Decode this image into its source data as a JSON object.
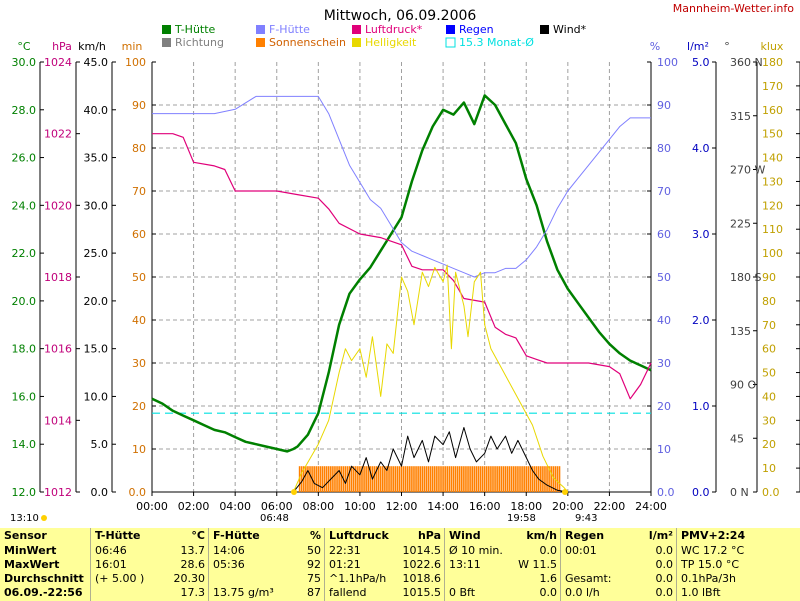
{
  "title": "Mittwoch, 06.09.2006",
  "site": "Mannheim-Wetter.info",
  "axis_units": {
    "temp": "°C",
    "pressure": "hPa",
    "wind": "km/h",
    "minutes": "min",
    "percent": "%",
    "rain": "l/m²",
    "direction": "°",
    "light": "klux"
  },
  "legend": [
    {
      "label": "T-Hütte",
      "color": "#008000",
      "marker": "square"
    },
    {
      "label": "Richtung",
      "color": "#808080",
      "marker": "square"
    },
    {
      "label": "F-Hütte",
      "color": "#8080ff",
      "marker": "square"
    },
    {
      "label": "Sonnenschein",
      "color": "#ff8000",
      "marker": "square"
    },
    {
      "label": "Luftdruck*",
      "color": "#e0007a",
      "marker": "square"
    },
    {
      "label": "Helligkeit",
      "color": "#e8d800",
      "marker": "square"
    },
    {
      "label": "Regen",
      "color": "#0000ff",
      "marker": "square"
    },
    {
      "label": "15.3 Monat-Ø",
      "color": "#00e0e0",
      "marker": "outline"
    },
    {
      "label": "Wind*",
      "color": "#000000",
      "marker": "square"
    }
  ],
  "markers": {
    "left_time": "13:10",
    "sunrise": "06:48",
    "sunset": "19:58",
    "right_time": "9:43"
  },
  "chart_data": {
    "type": "line",
    "title": "Mittwoch, 06.09.2006",
    "x": {
      "range": [
        0,
        24
      ],
      "ticks": [
        "00:00",
        "02:00",
        "04:00",
        "06:00",
        "08:00",
        "10:00",
        "12:00",
        "14:00",
        "16:00",
        "18:00",
        "20:00",
        "22:00",
        "24:00"
      ]
    },
    "axes": {
      "temp": {
        "unit": "°C",
        "range": [
          12,
          30
        ],
        "ticks": [
          "12.0",
          "14.0",
          "16.0",
          "18.0",
          "20.0",
          "22.0",
          "24.0",
          "26.0",
          "28.0",
          "30.0"
        ]
      },
      "pressure": {
        "unit": "hPa",
        "range": [
          1012,
          1024
        ],
        "ticks": [
          "1012",
          "1014",
          "1016",
          "1018",
          "1020",
          "1022",
          "1024"
        ]
      },
      "wind": {
        "unit": "km/h",
        "range": [
          0,
          50
        ],
        "ticks": [
          "0.0",
          "5.0",
          "10.0",
          "15.0",
          "20.0",
          "25.0",
          "30.0",
          "35.0",
          "40.0",
          "45.0"
        ]
      },
      "sunshine": {
        "unit": "min",
        "range": [
          0,
          100
        ],
        "ticks": [
          "0.0",
          "10",
          "20",
          "30",
          "40",
          "50",
          "60",
          "70",
          "80",
          "90",
          "100"
        ]
      },
      "humidity": {
        "unit": "%",
        "range": [
          0,
          100
        ],
        "ticks": [
          "0.0",
          "10",
          "20",
          "30",
          "40",
          "50",
          "60",
          "70",
          "80",
          "90",
          "100"
        ]
      },
      "rain": {
        "unit": "l/m²",
        "range": [
          0,
          5
        ],
        "ticks": [
          "0.0",
          "1.0",
          "2.0",
          "3.0",
          "4.0",
          "5.0"
        ]
      },
      "direction": {
        "unit": "°",
        "range": [
          0,
          360
        ],
        "ticks": [
          "0 N",
          "45",
          "90 O",
          "135",
          "180 S",
          "225",
          "270 W",
          "315",
          "360 N"
        ]
      },
      "light": {
        "unit": "klux",
        "range": [
          0,
          180
        ],
        "ticks": [
          "0.0",
          "10",
          "20",
          "30",
          "40",
          "50",
          "60",
          "70",
          "80",
          "90",
          "100",
          "110",
          "120",
          "130",
          "140",
          "150",
          "160",
          "170",
          "180"
        ]
      }
    },
    "grid": true,
    "legend_position": "top",
    "series": [
      {
        "name": "T-Hütte",
        "axis": "temp",
        "color": "#008000",
        "points": [
          [
            0,
            15.9
          ],
          [
            0.5,
            15.7
          ],
          [
            1,
            15.4
          ],
          [
            1.5,
            15.2
          ],
          [
            2,
            15.0
          ],
          [
            2.5,
            14.8
          ],
          [
            3,
            14.6
          ],
          [
            3.5,
            14.5
          ],
          [
            4,
            14.3
          ],
          [
            4.5,
            14.1
          ],
          [
            5,
            14.0
          ],
          [
            5.5,
            13.9
          ],
          [
            6,
            13.8
          ],
          [
            6.5,
            13.7
          ],
          [
            6.8,
            13.8
          ],
          [
            7,
            13.9
          ],
          [
            7.5,
            14.4
          ],
          [
            8,
            15.3
          ],
          [
            8.5,
            17.0
          ],
          [
            9,
            19.0
          ],
          [
            9.5,
            20.3
          ],
          [
            10,
            20.9
          ],
          [
            10.5,
            21.4
          ],
          [
            11,
            22.1
          ],
          [
            11.5,
            22.8
          ],
          [
            12,
            23.5
          ],
          [
            12.5,
            25.0
          ],
          [
            13,
            26.3
          ],
          [
            13.5,
            27.3
          ],
          [
            14,
            28.0
          ],
          [
            14.5,
            27.8
          ],
          [
            15,
            28.3
          ],
          [
            15.5,
            27.4
          ],
          [
            16,
            28.6
          ],
          [
            16.5,
            28.2
          ],
          [
            17,
            27.4
          ],
          [
            17.5,
            26.6
          ],
          [
            18,
            25.1
          ],
          [
            18.5,
            24.0
          ],
          [
            19,
            22.5
          ],
          [
            19.5,
            21.3
          ],
          [
            20,
            20.5
          ],
          [
            20.5,
            19.9
          ],
          [
            21,
            19.3
          ],
          [
            21.5,
            18.7
          ],
          [
            22,
            18.2
          ],
          [
            22.5,
            17.8
          ],
          [
            23,
            17.5
          ],
          [
            23.5,
            17.3
          ],
          [
            24,
            17.1
          ]
        ]
      },
      {
        "name": "F-Hütte",
        "axis": "humidity",
        "color": "#8080ff",
        "points": [
          [
            0,
            88
          ],
          [
            1,
            88
          ],
          [
            2,
            88
          ],
          [
            3,
            88
          ],
          [
            4,
            89
          ],
          [
            5,
            92
          ],
          [
            6,
            92
          ],
          [
            7,
            92
          ],
          [
            8,
            92
          ],
          [
            8.5,
            88
          ],
          [
            9,
            82
          ],
          [
            9.5,
            76
          ],
          [
            10,
            72
          ],
          [
            10.5,
            68
          ],
          [
            11,
            66
          ],
          [
            11.5,
            62
          ],
          [
            12,
            58
          ],
          [
            12.5,
            56
          ],
          [
            13,
            55
          ],
          [
            13.5,
            54
          ],
          [
            14,
            53
          ],
          [
            14.5,
            52
          ],
          [
            15,
            51
          ],
          [
            15.5,
            50
          ],
          [
            16,
            51
          ],
          [
            16.5,
            51
          ],
          [
            17,
            52
          ],
          [
            17.5,
            52
          ],
          [
            18,
            54
          ],
          [
            18.5,
            57
          ],
          [
            19,
            61
          ],
          [
            19.5,
            66
          ],
          [
            20,
            70
          ],
          [
            20.5,
            73
          ],
          [
            21,
            76
          ],
          [
            21.5,
            79
          ],
          [
            22,
            82
          ],
          [
            22.5,
            85
          ],
          [
            23,
            87
          ],
          [
            24,
            87
          ]
        ]
      },
      {
        "name": "Luftdruck*",
        "axis": "pressure",
        "color": "#e0007a",
        "points": [
          [
            0,
            1022.0
          ],
          [
            1,
            1022.0
          ],
          [
            1.5,
            1021.9
          ],
          [
            2,
            1021.2
          ],
          [
            3,
            1021.1
          ],
          [
            3.5,
            1021.0
          ],
          [
            4,
            1020.4
          ],
          [
            5,
            1020.4
          ],
          [
            6,
            1020.4
          ],
          [
            7,
            1020.3
          ],
          [
            8,
            1020.2
          ],
          [
            8.5,
            1019.9
          ],
          [
            9,
            1019.5
          ],
          [
            10,
            1019.2
          ],
          [
            11,
            1019.1
          ],
          [
            12,
            1018.9
          ],
          [
            12.5,
            1018.3
          ],
          [
            13,
            1018.2
          ],
          [
            14,
            1018.2
          ],
          [
            14.5,
            1017.9
          ],
          [
            15,
            1017.4
          ],
          [
            16,
            1017.3
          ],
          [
            16.5,
            1016.6
          ],
          [
            17,
            1016.4
          ],
          [
            17.5,
            1016.3
          ],
          [
            18,
            1015.8
          ],
          [
            18.5,
            1015.7
          ],
          [
            19,
            1015.6
          ],
          [
            20,
            1015.6
          ],
          [
            21,
            1015.6
          ],
          [
            22,
            1015.5
          ],
          [
            22.5,
            1015.3
          ],
          [
            23,
            1014.6
          ],
          [
            23.5,
            1015.0
          ],
          [
            24,
            1015.6
          ]
        ]
      },
      {
        "name": "Helligkeit",
        "axis": "light",
        "color": "#e8d800",
        "points": [
          [
            6.8,
            0
          ],
          [
            7.2,
            8
          ],
          [
            7.6,
            14
          ],
          [
            8,
            20
          ],
          [
            8.5,
            30
          ],
          [
            9,
            50
          ],
          [
            9.3,
            60
          ],
          [
            9.6,
            55
          ],
          [
            10,
            60
          ],
          [
            10.3,
            48
          ],
          [
            10.6,
            65
          ],
          [
            11,
            40
          ],
          [
            11.3,
            62
          ],
          [
            11.6,
            58
          ],
          [
            12,
            90
          ],
          [
            12.3,
            84
          ],
          [
            12.6,
            70
          ],
          [
            13,
            92
          ],
          [
            13.3,
            86
          ],
          [
            13.6,
            94
          ],
          [
            14,
            88
          ],
          [
            14.2,
            95
          ],
          [
            14.4,
            60
          ],
          [
            14.6,
            92
          ],
          [
            15,
            78
          ],
          [
            15.2,
            65
          ],
          [
            15.5,
            88
          ],
          [
            15.8,
            92
          ],
          [
            16,
            70
          ],
          [
            16.3,
            60
          ],
          [
            16.8,
            52
          ],
          [
            17.3,
            44
          ],
          [
            17.8,
            36
          ],
          [
            18.3,
            28
          ],
          [
            18.8,
            15
          ],
          [
            19.3,
            6
          ],
          [
            19.8,
            2
          ],
          [
            20,
            0
          ]
        ]
      },
      {
        "name": "Wind*",
        "axis": "wind",
        "color": "#000000",
        "points": [
          [
            6.8,
            0
          ],
          [
            7.2,
            1.2
          ],
          [
            7.5,
            2.5
          ],
          [
            7.8,
            1.0
          ],
          [
            8.2,
            0.5
          ],
          [
            8.6,
            1.5
          ],
          [
            9,
            2.5
          ],
          [
            9.3,
            1.0
          ],
          [
            9.6,
            3.0
          ],
          [
            10,
            2.0
          ],
          [
            10.3,
            4.0
          ],
          [
            10.6,
            1.5
          ],
          [
            11,
            3.5
          ],
          [
            11.3,
            2.5
          ],
          [
            11.6,
            5.0
          ],
          [
            12,
            3.0
          ],
          [
            12.3,
            6.5
          ],
          [
            12.6,
            4.0
          ],
          [
            13,
            6.0
          ],
          [
            13.3,
            3.5
          ],
          [
            13.6,
            6.5
          ],
          [
            14,
            5.5
          ],
          [
            14.3,
            7.0
          ],
          [
            14.6,
            4.0
          ],
          [
            15,
            7.5
          ],
          [
            15.3,
            5.0
          ],
          [
            15.6,
            3.5
          ],
          [
            16,
            4.5
          ],
          [
            16.3,
            6.5
          ],
          [
            16.6,
            5.0
          ],
          [
            17,
            6.5
          ],
          [
            17.3,
            4.5
          ],
          [
            17.6,
            6.0
          ],
          [
            18,
            4.0
          ],
          [
            18.3,
            2.5
          ],
          [
            18.6,
            1.5
          ],
          [
            19,
            0.8
          ],
          [
            19.5,
            0.2
          ],
          [
            20,
            0
          ]
        ]
      }
    ],
    "sunshine_bars": {
      "axis": "sunshine",
      "color": "#ff8000",
      "from": 7.1,
      "to": 19.7,
      "value": 6
    },
    "monthly_mean": {
      "name": "15.3 Monat-Ø",
      "axis": "temp",
      "value": 15.3,
      "color": "#00e0e0"
    }
  },
  "table": {
    "columns": [
      {
        "header": "Sensor",
        "unit": "",
        "rows": [
          [
            "MinWert",
            ""
          ],
          [
            "MaxWert",
            ""
          ],
          [
            "Durchschnitt",
            ""
          ],
          [
            "06.09.-22:56",
            ""
          ]
        ]
      },
      {
        "header": "T-Hütte",
        "unit": "°C",
        "rows": [
          [
            "06:46",
            "13.7"
          ],
          [
            "16:01",
            "28.6"
          ],
          [
            "(+ 5.00 )",
            "20.30"
          ],
          [
            "",
            "17.3"
          ]
        ]
      },
      {
        "header": "F-Hütte",
        "unit": "%",
        "rows": [
          [
            "14:06",
            "50"
          ],
          [
            "05:36",
            "92"
          ],
          [
            "",
            "75"
          ],
          [
            "13.75 g/m³",
            "87"
          ]
        ]
      },
      {
        "header": "Luftdruck",
        "unit": "hPa",
        "rows": [
          [
            "22:31",
            "1014.5"
          ],
          [
            "01:21",
            "1022.6"
          ],
          [
            "^1.1hPa/h",
            "1018.6"
          ],
          [
            "fallend",
            "1015.5"
          ]
        ]
      },
      {
        "header": "Wind",
        "unit": "km/h",
        "rows": [
          [
            "Ø 10 min.",
            "0.0"
          ],
          [
            "13:11",
            "W 11.5"
          ],
          [
            "",
            "1.6"
          ],
          [
            "0 Bft",
            "0.0"
          ]
        ]
      },
      {
        "header": "Regen",
        "unit": "l/m²",
        "rows": [
          [
            "00:01",
            "0.0"
          ],
          [
            "",
            "0.0"
          ],
          [
            "Gesamt:",
            "0.0"
          ],
          [
            "0.0 l/h",
            "0.0"
          ]
        ]
      },
      {
        "header": "PMV+2:24",
        "unit": "",
        "rows": [
          [
            "WC 17.2 °C",
            ""
          ],
          [
            "TP 15.0 °C",
            ""
          ],
          [
            "0.1hPa/3h",
            ""
          ],
          [
            "1.0 lBft",
            ""
          ]
        ]
      }
    ]
  }
}
